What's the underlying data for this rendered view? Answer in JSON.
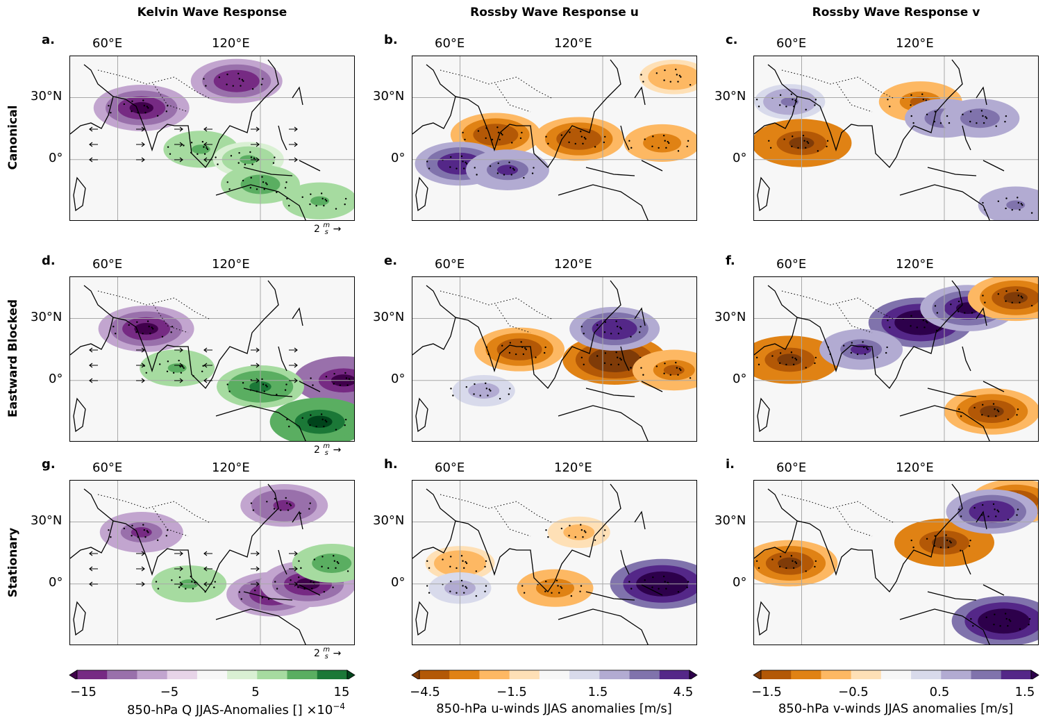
{
  "columns": [
    {
      "title": "Kelvin Wave Response"
    },
    {
      "title": "Rossby Wave Response u"
    },
    {
      "title": "Rossby Wave Response v"
    }
  ],
  "rows": [
    {
      "label": "Canonical"
    },
    {
      "label": "Eastward Blocked"
    },
    {
      "label": "Stationary"
    }
  ],
  "panels": [
    "a.",
    "b.",
    "c.",
    "d.",
    "e.",
    "f.",
    "g.",
    "h.",
    "i."
  ],
  "lon_ticks": [
    "60°E",
    "120°E"
  ],
  "lat_ticks": [
    "30°N",
    "0°"
  ],
  "quiver_key": {
    "value": "2",
    "unit_num": "m",
    "unit_den": "s",
    "arrow": "→"
  },
  "colorbars": [
    {
      "ticks": [
        "−15",
        "−5",
        "5",
        "15"
      ],
      "label": "850-hPa Q JJAS-Anomalies [] ×10",
      "exponent": "−4",
      "colors": [
        "#40004b",
        "#762a83",
        "#9970ab",
        "#c2a5cf",
        "#e7d4e8",
        "#f7f7f7",
        "#d9f0d3",
        "#a6dba0",
        "#5aae61",
        "#1b7837",
        "#00441b"
      ]
    },
    {
      "ticks": [
        "−4.5",
        "−1.5",
        "1.5",
        "4.5"
      ],
      "label": "850-hPa u-winds JJAS anomalies [m/s]",
      "colors": [
        "#7f3b08",
        "#b35806",
        "#e08214",
        "#fdb863",
        "#fee0b6",
        "#f7f7f7",
        "#d8daeb",
        "#b2abd2",
        "#8073ac",
        "#542788",
        "#2d004b"
      ]
    },
    {
      "ticks": [
        "−1.5",
        "−0.5",
        "0.5",
        "1.5"
      ],
      "label": "850-hPa v-winds JJAS anomalies [m/s]",
      "colors": [
        "#7f3b08",
        "#b35806",
        "#e08214",
        "#fdb863",
        "#fee0b6",
        "#f7f7f7",
        "#d8daeb",
        "#b2abd2",
        "#8073ac",
        "#542788",
        "#2d004b"
      ]
    }
  ],
  "chart_data": {
    "type": "heatmap",
    "description_axes": {
      "longitude_range": [
        40,
        160
      ],
      "latitude_range": [
        -30,
        50
      ]
    },
    "panels": [
      {
        "id": "a",
        "field": "850-hPa Q anomaly (x1e-4)",
        "regime": "Canonical",
        "features": [
          {
            "lon": 70,
            "lat": 25,
            "value": -13
          },
          {
            "lon": 110,
            "lat": 38,
            "value": -12
          },
          {
            "lon": 95,
            "lat": 5,
            "value": 8
          },
          {
            "lon": 115,
            "lat": 0,
            "value": 7
          },
          {
            "lon": 120,
            "lat": -12,
            "value": 9
          },
          {
            "lon": 145,
            "lat": -20,
            "value": 8
          }
        ]
      },
      {
        "id": "b",
        "field": "850-hPa u anomaly (m/s)",
        "regime": "Canonical",
        "features": [
          {
            "lon": 75,
            "lat": 12,
            "value": -3.5
          },
          {
            "lon": 110,
            "lat": 10,
            "value": -3.5
          },
          {
            "lon": 145,
            "lat": 8,
            "value": -2.5
          },
          {
            "lon": 60,
            "lat": -2,
            "value": 3.5
          },
          {
            "lon": 80,
            "lat": -5,
            "value": 3.0
          },
          {
            "lon": 150,
            "lat": 40,
            "value": -2.0
          }
        ]
      },
      {
        "id": "c",
        "field": "850-hPa v anomaly (m/s)",
        "regime": "Canonical",
        "features": [
          {
            "lon": 60,
            "lat": 8,
            "value": -1.4
          },
          {
            "lon": 110,
            "lat": 28,
            "value": -1.0
          },
          {
            "lon": 120,
            "lat": 20,
            "value": 0.9
          },
          {
            "lon": 135,
            "lat": 20,
            "value": 0.9
          },
          {
            "lon": 55,
            "lat": 28,
            "value": 0.7
          },
          {
            "lon": 150,
            "lat": -22,
            "value": 0.8
          }
        ]
      },
      {
        "id": "d",
        "field": "850-hPa Q anomaly (x1e-4)",
        "regime": "Eastward Blocked",
        "features": [
          {
            "lon": 72,
            "lat": 25,
            "value": -13
          },
          {
            "lon": 155,
            "lat": 0,
            "value": -14
          },
          {
            "lon": 85,
            "lat": 6,
            "value": 8
          },
          {
            "lon": 120,
            "lat": -3,
            "value": 11
          },
          {
            "lon": 145,
            "lat": -20,
            "value": 14
          }
        ]
      },
      {
        "id": "e",
        "field": "850-hPa u anomaly (m/s)",
        "regime": "Eastward Blocked",
        "features": [
          {
            "lon": 85,
            "lat": 15,
            "value": -3.5
          },
          {
            "lon": 125,
            "lat": 10,
            "value": -4.5
          },
          {
            "lon": 150,
            "lat": 5,
            "value": -3.0
          },
          {
            "lon": 125,
            "lat": 25,
            "value": 3.5
          },
          {
            "lon": 70,
            "lat": -5,
            "value": 1.5
          }
        ]
      },
      {
        "id": "f",
        "field": "850-hPa v anomaly (m/s)",
        "regime": "Eastward Blocked",
        "features": [
          {
            "lon": 55,
            "lat": 10,
            "value": -1.4
          },
          {
            "lon": 110,
            "lat": 28,
            "value": 1.5
          },
          {
            "lon": 130,
            "lat": 35,
            "value": 1.3
          },
          {
            "lon": 150,
            "lat": 40,
            "value": -1.3
          },
          {
            "lon": 140,
            "lat": -15,
            "value": -1.3
          },
          {
            "lon": 85,
            "lat": 15,
            "value": 1.0
          }
        ]
      },
      {
        "id": "g",
        "field": "850-hPa Q anomaly (x1e-4)",
        "regime": "Stationary",
        "features": [
          {
            "lon": 70,
            "lat": 25,
            "value": -10
          },
          {
            "lon": 125,
            "lat": -5,
            "value": -12
          },
          {
            "lon": 140,
            "lat": 0,
            "value": -13
          },
          {
            "lon": 90,
            "lat": 0,
            "value": 8
          },
          {
            "lon": 150,
            "lat": 10,
            "value": 9
          },
          {
            "lon": 130,
            "lat": 38,
            "value": -11
          }
        ]
      },
      {
        "id": "h",
        "field": "850-hPa u anomaly (m/s)",
        "regime": "Stationary",
        "features": [
          {
            "lon": 145,
            "lat": 0,
            "value": 4.5
          },
          {
            "lon": 100,
            "lat": -2,
            "value": -2.5
          },
          {
            "lon": 60,
            "lat": 10,
            "value": -2.0
          },
          {
            "lon": 110,
            "lat": 25,
            "value": -1.5
          },
          {
            "lon": 60,
            "lat": -2,
            "value": 1.5
          }
        ]
      },
      {
        "id": "i",
        "field": "850-hPa v anomaly (m/s)",
        "regime": "Stationary",
        "features": [
          {
            "lon": 55,
            "lat": 10,
            "value": -1.3
          },
          {
            "lon": 120,
            "lat": 20,
            "value": -1.4
          },
          {
            "lon": 145,
            "lat": -18,
            "value": 1.5
          },
          {
            "lon": 150,
            "lat": 40,
            "value": -1.2
          },
          {
            "lon": 140,
            "lat": 35,
            "value": 1.2
          }
        ]
      }
    ]
  }
}
